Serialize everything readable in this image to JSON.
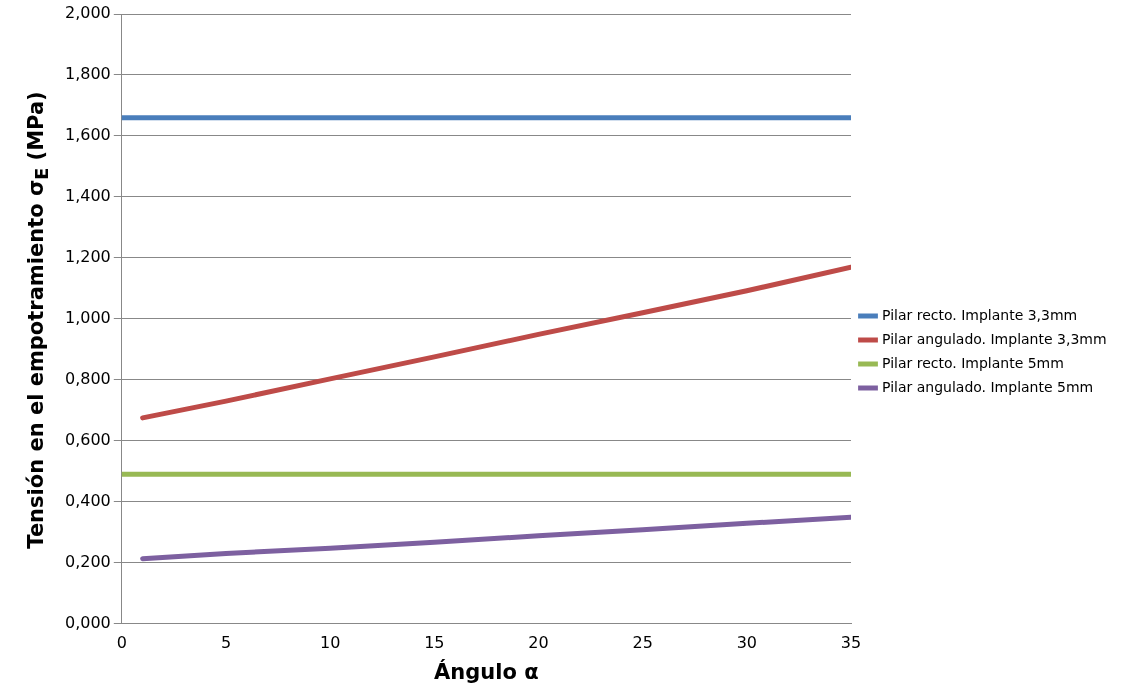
{
  "chart_data": {
    "type": "line",
    "xlabel": "Ángulo α",
    "ylabel": "Tensión en el empotramiento σ$_{E}$ (MPa)",
    "xlim": [
      0,
      35
    ],
    "xticks": [
      0,
      5,
      10,
      15,
      20,
      25,
      30,
      35
    ],
    "ylim": [
      0,
      2
    ],
    "yticks": [
      {
        "value": 0,
        "label": "0,000"
      },
      {
        "value": 0.2,
        "label": "0,200"
      },
      {
        "value": 0.4,
        "label": "0,400"
      },
      {
        "value": 0.6,
        "label": "0,600"
      },
      {
        "value": 0.8,
        "label": "0,800"
      },
      {
        "value": 1,
        "label": "1,000"
      },
      {
        "value": 1.2,
        "label": "1,200"
      },
      {
        "value": 1.4,
        "label": "1,400"
      },
      {
        "value": 1.6,
        "label": "1,600"
      },
      {
        "value": 1.8,
        "label": "1,800"
      },
      {
        "value": 2,
        "label": "2,000"
      }
    ],
    "grid": "y",
    "legend": "right",
    "marker": "none",
    "line_style": "solid",
    "series": [
      {
        "name": "Pilar recto. Implante 3,3mm",
        "color": "#4a7ebb",
        "x": [
          0,
          35
        ],
        "values": [
          1.66,
          1.66
        ]
      },
      {
        "name": "Pilar angulado. Implante 3,3mm",
        "color": "#be4b48",
        "x": [
          1,
          5,
          10,
          15,
          20,
          25,
          30,
          35
        ],
        "values": [
          0.675,
          0.73,
          0.803,
          0.875,
          0.949,
          1.02,
          1.092,
          1.169
        ]
      },
      {
        "name": "Pilar recto. Implante 5mm",
        "color": "#98b954",
        "x": [
          0,
          35
        ],
        "values": [
          0.49,
          0.49
        ]
      },
      {
        "name": "Pilar angulado. Implante 5mm",
        "color": "#7d60a0",
        "x": [
          1,
          5,
          10,
          15,
          20,
          25,
          30,
          35
        ],
        "values": [
          0.213,
          0.23,
          0.247,
          0.267,
          0.288,
          0.308,
          0.329,
          0.349
        ]
      }
    ]
  }
}
